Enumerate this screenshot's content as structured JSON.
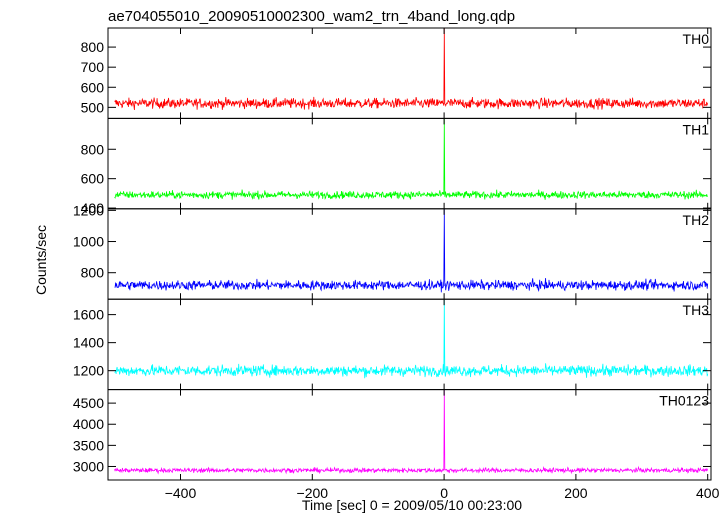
{
  "chart_data": {
    "type": "line",
    "title": "ae704055010_20090510002300_wam2_trn_4band_long.qdp",
    "xlabel": "Time [sec] 0 = 2009/05/10 00:23:00",
    "ylabel": "Counts/sec",
    "xlim": [
      -510,
      405
    ],
    "xticks": [
      -400,
      -200,
      0,
      200,
      400
    ],
    "xtick_labels": [
      "−400",
      "−200",
      "0",
      "200",
      "400"
    ],
    "grid": false,
    "burst_time": 0,
    "panels": [
      {
        "name": "TH0",
        "color": "#ff0000",
        "ylim": [
          445,
          895
        ],
        "yticks": [
          500,
          600,
          700,
          800
        ],
        "ytick_labels": [
          "500",
          "600",
          "700",
          "800"
        ],
        "baseline": 520,
        "noise": 18,
        "peak": 895
      },
      {
        "name": "TH1",
        "color": "#00ff00",
        "ylim": [
          395,
          1010
        ],
        "yticks": [
          400,
          600,
          800
        ],
        "ytick_labels": [
          "400",
          "600",
          "800"
        ],
        "baseline": 490,
        "noise": 18,
        "peak": 1010
      },
      {
        "name": "TH2",
        "color": "#0000ff",
        "ylim": [
          630,
          1210
        ],
        "yticks": [
          800,
          1000,
          1200
        ],
        "ytick_labels": [
          "800",
          "1000",
          "1200"
        ],
        "baseline": 720,
        "noise": 22,
        "peak": 1210
      },
      {
        "name": "TH3",
        "color": "#00ffff",
        "ylim": [
          1065,
          1710
        ],
        "yticks": [
          1200,
          1400,
          1600
        ],
        "ytick_labels": [
          "1200",
          "1400",
          "1600"
        ],
        "baseline": 1200,
        "noise": 28,
        "peak": 1710
      },
      {
        "name": "TH0123",
        "color": "#ff00ff",
        "ylim": [
          2680,
          4820
        ],
        "yticks": [
          3000,
          3500,
          4000,
          4500
        ],
        "ytick_labels": [
          "3000",
          "3500",
          "4000",
          "4500"
        ],
        "baseline": 2910,
        "noise": 38,
        "peak": 4820
      }
    ]
  }
}
